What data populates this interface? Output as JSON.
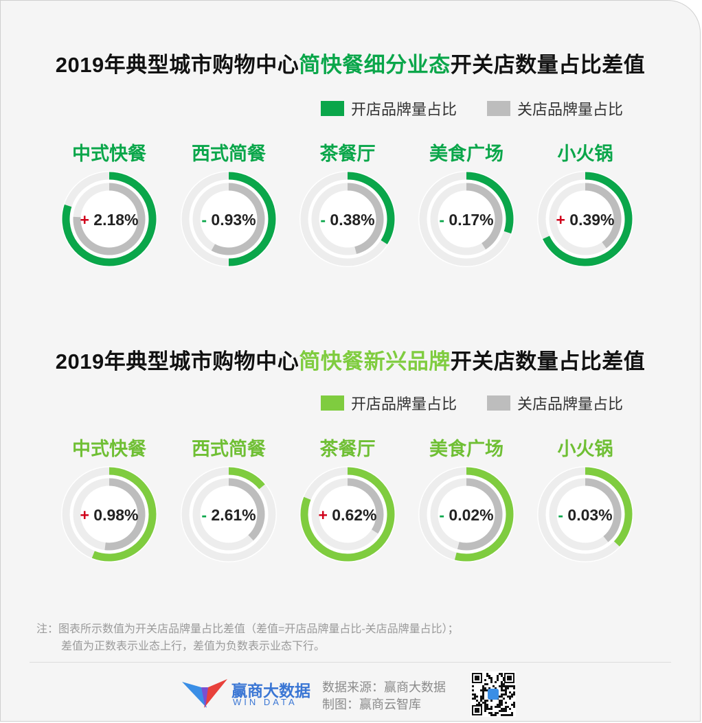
{
  "top": {
    "title_pre": "2019年典型城市购物中心",
    "title_hl": "简快餐细分业态",
    "title_post": "开关店数量占比差值",
    "legend_open": "开店品牌量占比",
    "legend_close": "关店品牌量占比"
  },
  "bottom": {
    "title_pre": "2019年典型城市购物中心",
    "title_hl": "简快餐新兴品牌",
    "title_post": "开关店数量占比差值",
    "legend_open": "开店品牌量占比",
    "legend_close": "关店品牌量占比"
  },
  "colors": {
    "open_top": "#0aa64a",
    "open_bottom": "#7fcc3f",
    "close": "#bdbdbd",
    "track": "#ededed",
    "plus": "#d0021b",
    "minus": "#0aa64a"
  },
  "chart_data": [
    {
      "type": "donut",
      "title": "2019年典型城市购物中心简快餐细分业态开关店数量占比差值",
      "categories": [
        "中式快餐",
        "西式简餐",
        "茶餐厅",
        "美食广场",
        "小火锅"
      ],
      "sign": [
        "+",
        "-",
        "-",
        "-",
        "+"
      ],
      "values": [
        "2.18%",
        "0.93%",
        "0.38%",
        "0.17%",
        "0.39%"
      ],
      "series": [
        {
          "name": "开店品牌量占比",
          "fraction": [
            0.8,
            0.5,
            0.34,
            0.3,
            0.68
          ]
        },
        {
          "name": "关店品牌量占比",
          "fraction": [
            0.76,
            0.58,
            0.46,
            0.41,
            0.4
          ]
        }
      ]
    },
    {
      "type": "donut",
      "title": "2019年典型城市购物中心简快餐新兴品牌开关店数量占比差值",
      "categories": [
        "中式快餐",
        "西式简餐",
        "茶餐厅",
        "美食广场",
        "小火锅"
      ],
      "sign": [
        "+",
        "-",
        "+",
        "-",
        "-"
      ],
      "values": [
        "0.98%",
        "2.61%",
        "0.62%",
        "0.02%",
        "0.03%"
      ],
      "series": [
        {
          "name": "开店品牌量占比",
          "fraction": [
            0.56,
            0.14,
            0.81,
            0.54,
            0.37
          ]
        },
        {
          "name": "关店品牌量占比",
          "fraction": [
            0.52,
            0.38,
            0.34,
            0.54,
            0.39
          ]
        }
      ]
    }
  ],
  "note_line1": "注：图表所示数值为开关店品牌量占比差值（差值=开店品牌量占比-关店品牌量占比）；",
  "note_line2": "差值为正数表示业态上行，差值为负数表示业态下行。",
  "brand": {
    "name": "赢商大数据",
    "sub": "WIN DATA"
  },
  "source_line1": "数据来源：赢商大数据",
  "source_line2": "制图：赢商云智库"
}
